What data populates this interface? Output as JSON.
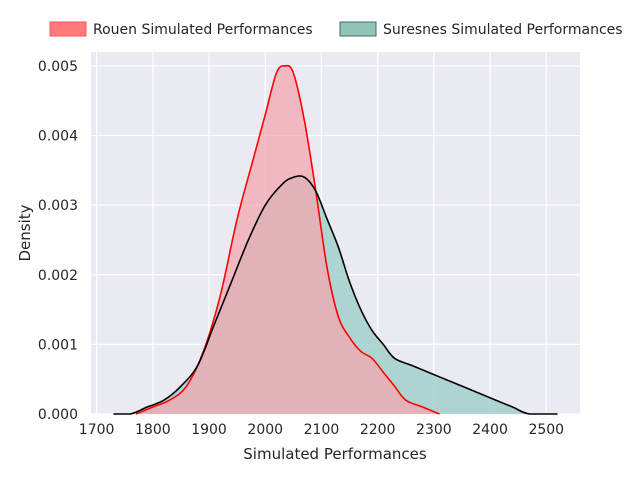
{
  "chart_data": {
    "type": "area",
    "xlabel": "Simulated Performances",
    "ylabel": "Density",
    "xlim": [
      1690,
      2560
    ],
    "ylim": [
      0,
      0.0052
    ],
    "x_ticks": [
      1700,
      1800,
      1900,
      2000,
      2100,
      2200,
      2300,
      2400,
      2500
    ],
    "y_ticks": [
      0.0,
      0.001,
      0.002,
      0.003,
      0.004,
      0.005
    ],
    "y_tick_labels": [
      "0.000",
      "0.001",
      "0.002",
      "0.003",
      "0.004",
      "0.005"
    ],
    "grid": true,
    "legend_position": "top",
    "series": [
      {
        "name": "Rouen Simulated Performances",
        "fill": "#f4a7b0",
        "line": "#ff0000",
        "legend_fill": "#ff7b7b",
        "legend_edge": "#ff5555",
        "points": [
          [
            1770,
            0.0
          ],
          [
            1800,
            0.0001
          ],
          [
            1830,
            0.0002
          ],
          [
            1860,
            0.0004
          ],
          [
            1890,
            0.0009
          ],
          [
            1920,
            0.0017
          ],
          [
            1950,
            0.0028
          ],
          [
            1980,
            0.0037
          ],
          [
            2000,
            0.0043
          ],
          [
            2020,
            0.0049
          ],
          [
            2035,
            0.005
          ],
          [
            2050,
            0.0049
          ],
          [
            2070,
            0.0042
          ],
          [
            2090,
            0.0032
          ],
          [
            2110,
            0.0021
          ],
          [
            2130,
            0.0014
          ],
          [
            2150,
            0.0011
          ],
          [
            2170,
            0.0009
          ],
          [
            2190,
            0.0008
          ],
          [
            2210,
            0.0006
          ],
          [
            2230,
            0.0004
          ],
          [
            2250,
            0.0002
          ],
          [
            2280,
            0.0001
          ],
          [
            2310,
            0.0
          ]
        ]
      },
      {
        "name": "Suresnes Simulated Performances",
        "fill": "#a3d0cc",
        "line": "#000000",
        "legend_fill": "#8fc4b7",
        "legend_edge": "#3d6f68",
        "points": [
          [
            1730,
            0.0
          ],
          [
            1760,
            0.0
          ],
          [
            1790,
            0.0001
          ],
          [
            1820,
            0.0002
          ],
          [
            1850,
            0.0004
          ],
          [
            1880,
            0.0007
          ],
          [
            1910,
            0.0013
          ],
          [
            1940,
            0.0019
          ],
          [
            1970,
            0.0025
          ],
          [
            2000,
            0.003
          ],
          [
            2030,
            0.0033
          ],
          [
            2050,
            0.0034
          ],
          [
            2070,
            0.0034
          ],
          [
            2090,
            0.0032
          ],
          [
            2110,
            0.0028
          ],
          [
            2130,
            0.0024
          ],
          [
            2150,
            0.0019
          ],
          [
            2170,
            0.0015
          ],
          [
            2190,
            0.0012
          ],
          [
            2210,
            0.001
          ],
          [
            2230,
            0.0008
          ],
          [
            2260,
            0.0007
          ],
          [
            2290,
            0.0006
          ],
          [
            2320,
            0.0005
          ],
          [
            2350,
            0.0004
          ],
          [
            2380,
            0.0003
          ],
          [
            2410,
            0.0002
          ],
          [
            2440,
            0.0001
          ],
          [
            2470,
            0.0
          ],
          [
            2520,
            0.0
          ]
        ]
      }
    ]
  }
}
